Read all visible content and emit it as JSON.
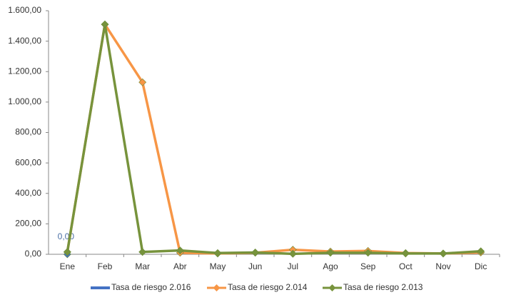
{
  "chart_data": {
    "type": "line",
    "categories": [
      "Ene",
      "Feb",
      "Mar",
      "Abr",
      "May",
      "Jun",
      "Jul",
      "Ago",
      "Sep",
      "Oct",
      "Nov",
      "Dic"
    ],
    "series": [
      {
        "name": "Tasa de riesgo 2.016",
        "color": "#4472c4",
        "values": [
          0,
          null,
          null,
          null,
          null,
          null,
          null,
          null,
          null,
          null,
          null,
          null
        ],
        "value_labels": [
          "0,00",
          null,
          null,
          null,
          null,
          null,
          null,
          null,
          null,
          null,
          null,
          null
        ]
      },
      {
        "name": "Tasa de riesgo 2.014",
        "color": "#f79646",
        "values": [
          15,
          1510,
          1130,
          10,
          5,
          10,
          30,
          18,
          22,
          8,
          5,
          12
        ]
      },
      {
        "name": "Tasa de riesgo 2.013",
        "color": "#77933c",
        "values": [
          15,
          1510,
          15,
          25,
          8,
          12,
          3,
          10,
          10,
          5,
          5,
          20
        ]
      }
    ],
    "ylim": [
      0,
      1600
    ],
    "yticks": [
      {
        "value": 0,
        "label": "0,00"
      },
      {
        "value": 200,
        "label": "200,00"
      },
      {
        "value": 400,
        "label": "400,00"
      },
      {
        "value": 600,
        "label": "600,00"
      },
      {
        "value": 800,
        "label": "800,00"
      },
      {
        "value": 1000,
        "label": "1.000,00"
      },
      {
        "value": 1200,
        "label": "1.200,00"
      },
      {
        "value": 1400,
        "label": "1.400,00"
      },
      {
        "value": 1600,
        "label": "1.600,00"
      }
    ],
    "grid": false,
    "legend": "bottom"
  }
}
